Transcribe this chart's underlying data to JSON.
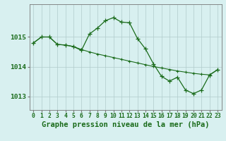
{
  "title": "Graphe pression niveau de la mer (hPa)",
  "hours": [
    0,
    1,
    2,
    3,
    4,
    5,
    6,
    7,
    8,
    9,
    10,
    11,
    12,
    13,
    14,
    15,
    16,
    17,
    18,
    19,
    20,
    21,
    22,
    23
  ],
  "series1_y": [
    1014.8,
    1015.0,
    1015.0,
    1014.75,
    1014.73,
    1014.68,
    1014.55,
    1015.1,
    1015.3,
    1015.55,
    1015.65,
    1015.5,
    1015.48,
    1014.95,
    1014.6,
    1014.1,
    1013.68,
    1013.52,
    1013.65,
    1013.22,
    1013.1,
    1013.22,
    1013.72,
    1013.9
  ],
  "series2_y": [
    1014.8,
    1015.0,
    1015.0,
    1014.75,
    1014.73,
    1014.68,
    1014.58,
    1014.5,
    1014.43,
    1014.37,
    1014.31,
    1014.25,
    1014.19,
    1014.13,
    1014.07,
    1014.01,
    1013.96,
    1013.91,
    1013.86,
    1013.82,
    1013.78,
    1013.75,
    1013.73,
    1013.9
  ],
  "line_color": "#1a6b1a",
  "bg_color": "#d8f0f0",
  "grid_color": "#b0cccc",
  "axis_color": "#777777",
  "ylim_min": 1012.55,
  "ylim_max": 1016.1,
  "yticks": [
    1013,
    1014,
    1015
  ],
  "title_fontsize": 7.5,
  "tick_fontsize": 5.8
}
